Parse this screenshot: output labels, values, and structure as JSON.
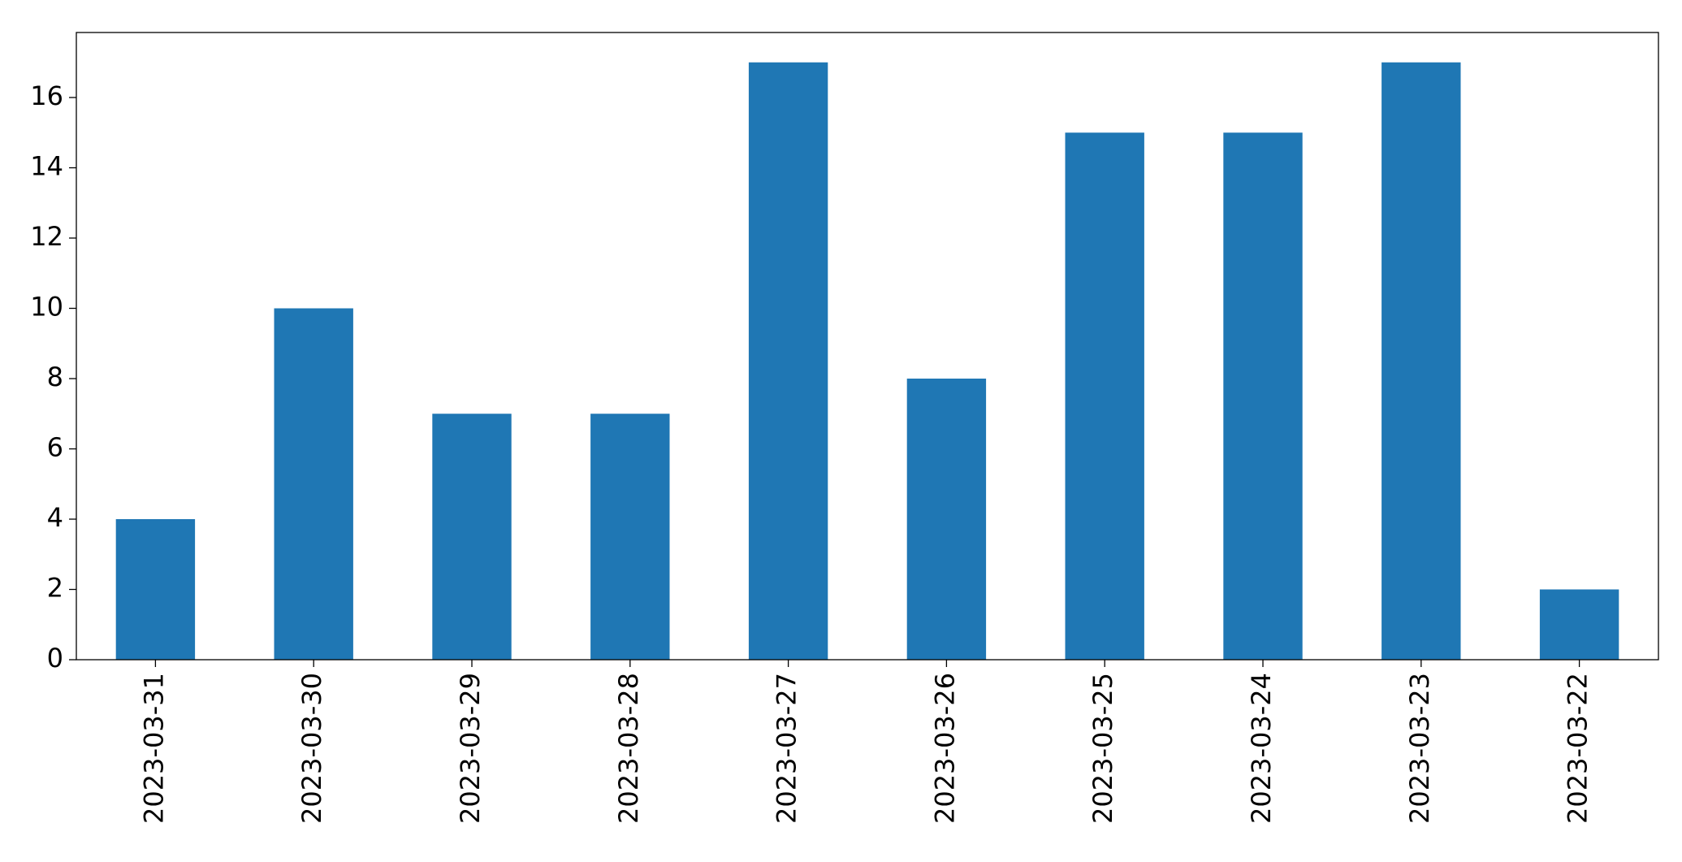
{
  "chart_data": {
    "type": "bar",
    "categories": [
      "2023-03-31",
      "2023-03-30",
      "2023-03-29",
      "2023-03-28",
      "2023-03-27",
      "2023-03-26",
      "2023-03-25",
      "2023-03-24",
      "2023-03-23",
      "2023-03-22"
    ],
    "values": [
      4,
      10,
      7,
      7,
      17,
      8,
      15,
      15,
      17,
      2
    ],
    "color": "#1f77b4",
    "ylim": [
      0,
      17.85
    ],
    "yticks": [
      0,
      2,
      4,
      6,
      8,
      10,
      12,
      14,
      16
    ],
    "grid": false
  }
}
